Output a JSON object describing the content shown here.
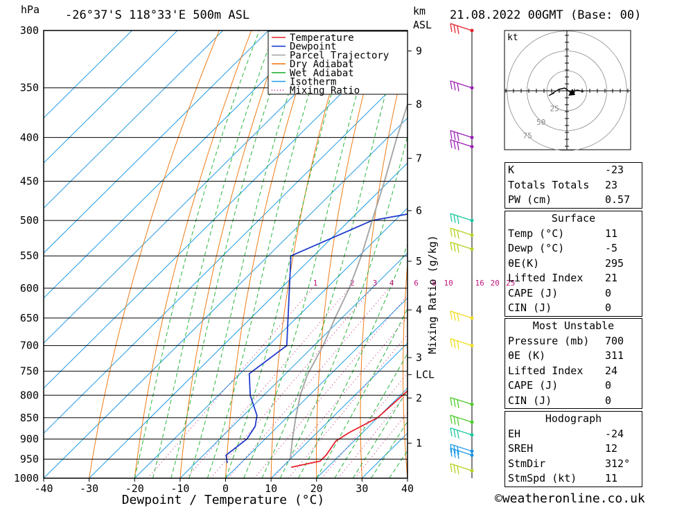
{
  "header": {
    "location": "-26°37'S 118°33'E 500m ASL",
    "date": "21.08.2022 00GMT (Base: 00)",
    "hpa_label": "hPa",
    "km_label": "km",
    "asl_label": "ASL"
  },
  "chart_data": {
    "type": "line",
    "xlabel": "Dewpoint / Temperature (°C)",
    "ylabel": "hPa",
    "secondary_ylabel": "Mixing Ratio (g/kg)",
    "xlim": [
      -40,
      40
    ],
    "ylim": [
      1000,
      300
    ],
    "pressure_ticks": [
      300,
      350,
      400,
      450,
      500,
      550,
      600,
      650,
      700,
      750,
      800,
      850,
      900,
      950,
      1000
    ],
    "temp_ticks": [
      -40,
      -30,
      -20,
      -10,
      0,
      10,
      20,
      30,
      40
    ],
    "height_ticks": [
      {
        "label": "9",
        "p": 317
      },
      {
        "label": "8",
        "p": 366
      },
      {
        "label": "7",
        "p": 423
      },
      {
        "label": "6",
        "p": 487
      },
      {
        "label": "5",
        "p": 558
      },
      {
        "label": "4",
        "p": 636
      },
      {
        "label": "3",
        "p": 723
      },
      {
        "label": "LCL",
        "p": 757
      },
      {
        "label": "2",
        "p": 806
      },
      {
        "label": "1",
        "p": 910
      }
    ],
    "mixing_ratio_labels": [
      "1",
      "2",
      "3",
      "4",
      "6",
      "8",
      "10",
      "16",
      "20",
      "25"
    ],
    "mixing_ratio_values": [
      1,
      2,
      3,
      4,
      6,
      8,
      10,
      16,
      20,
      25
    ],
    "legend": [
      "Temperature",
      "Dewpoint",
      "Parcel Trajectory",
      "Dry Adiabat",
      "Wet Adiabat",
      "Isotherm",
      "Mixing Ratio"
    ],
    "series": [
      {
        "name": "Temperature",
        "color": "#e8202a",
        "points": [
          [
            971,
            12
          ],
          [
            955,
            17
          ],
          [
            940,
            17
          ],
          [
            905,
            16
          ],
          [
            885,
            17
          ],
          [
            850,
            20
          ],
          [
            800,
            20.5
          ],
          [
            760,
            21
          ],
          [
            745,
            20.5
          ],
          [
            700,
            17
          ],
          [
            600,
            10
          ],
          [
            500,
            2
          ],
          [
            470,
            0.5
          ],
          [
            440,
            -1
          ],
          [
            400,
            -9
          ],
          [
            355,
            -15
          ],
          [
            337,
            -18
          ],
          [
            300,
            -27
          ]
        ]
      },
      {
        "name": "Dewpoint",
        "color": "#1f3ccc",
        "points": [
          [
            960,
            -3
          ],
          [
            940,
            -5
          ],
          [
            900,
            -4
          ],
          [
            870,
            -5
          ],
          [
            845,
            -7
          ],
          [
            800,
            -13
          ],
          [
            755,
            -18
          ],
          [
            700,
            -16
          ],
          [
            550,
            -35
          ],
          [
            500,
            -25
          ],
          [
            465,
            2
          ],
          [
            455,
            0
          ],
          [
            450,
            0
          ],
          [
            400,
            -1
          ],
          [
            370,
            -6
          ],
          [
            340,
            -7
          ],
          [
            330,
            -9
          ],
          [
            300,
            -15
          ]
        ]
      },
      {
        "name": "Parcel Trajectory",
        "color": "#a8a8a8",
        "points": [
          [
            950,
            10
          ],
          [
            900,
            6
          ],
          [
            850,
            2
          ],
          [
            800,
            -2
          ],
          [
            757,
            -5
          ],
          [
            700,
            -8
          ],
          [
            650,
            -11.5
          ],
          [
            600,
            -15
          ],
          [
            550,
            -19.5
          ],
          [
            500,
            -25
          ],
          [
            450,
            -31
          ],
          [
            400,
            -38
          ],
          [
            350,
            -45.5
          ],
          [
            310,
            -53
          ]
        ]
      }
    ]
  },
  "winds": {
    "colors": [
      "#e8202a",
      "#9b1eb4",
      "#9b1eb4",
      "#9b1eb4",
      "#18c8a0",
      "#b4d21e",
      "#b4d21e",
      "#f0dc1e",
      "#f0dc1e",
      "#4ccc28",
      "#4ccc28",
      "#18c8a0",
      "#1896e6",
      "#1896e6",
      "#b4d21e"
    ],
    "pressures": [
      300,
      350,
      400,
      410,
      500,
      520,
      540,
      650,
      700,
      820,
      860,
      890,
      930,
      940,
      980
    ]
  },
  "hodograph": {
    "unit": "kt",
    "rings": [
      "25",
      "50",
      "75"
    ]
  },
  "indices": [
    {
      "k": "K",
      "v": "-23"
    },
    {
      "k": "Totals Totals",
      "v": "23"
    },
    {
      "k": "PW (cm)",
      "v": "0.57"
    }
  ],
  "surface": {
    "title": "Surface",
    "rows": [
      {
        "k": "Temp (°C)",
        "v": "11"
      },
      {
        "k": "Dewp (°C)",
        "v": "-5"
      },
      {
        "k": "θE(K)",
        "v": "295"
      },
      {
        "k": "Lifted Index",
        "v": "21"
      },
      {
        "k": "CAPE (J)",
        "v": "0"
      },
      {
        "k": "CIN (J)",
        "v": "0"
      }
    ]
  },
  "most_unstable": {
    "title": "Most Unstable",
    "rows": [
      {
        "k": "Pressure (mb)",
        "v": "700"
      },
      {
        "k": "θE (K)",
        "v": "311"
      },
      {
        "k": "Lifted Index",
        "v": "24"
      },
      {
        "k": "CAPE (J)",
        "v": "0"
      },
      {
        "k": "CIN (J)",
        "v": "0"
      }
    ]
  },
  "hodograph_table": {
    "title": "Hodograph",
    "rows": [
      {
        "k": "EH",
        "v": "-24"
      },
      {
        "k": "SREH",
        "v": "12"
      },
      {
        "k": "StmDir",
        "v": "312°"
      },
      {
        "k": "StmSpd (kt)",
        "v": "11"
      }
    ]
  },
  "footer": {
    "copyright": "©weatheronline.co.uk"
  }
}
